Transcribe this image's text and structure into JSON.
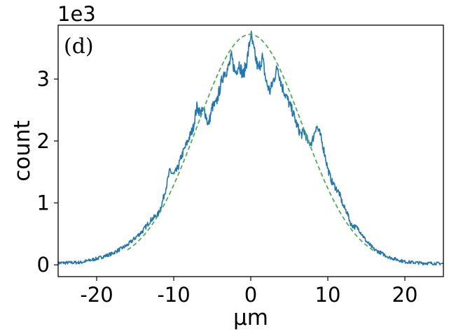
{
  "chart_data": {
    "type": "line",
    "panel_label": "(d)",
    "xlabel": "μm",
    "ylabel": "count",
    "y_offset_label": "1e3",
    "xlim": [
      -25,
      25
    ],
    "ylim": [
      -0.19,
      3.87
    ],
    "xticks": [
      -20,
      -10,
      0,
      10,
      20
    ],
    "xtick_labels": [
      "-20",
      "-10",
      "0",
      "10",
      "20"
    ],
    "yticks": [
      0,
      1,
      2,
      3
    ],
    "ytick_labels": [
      "0",
      "1",
      "2",
      "3"
    ],
    "grid": false,
    "series": [
      {
        "style": "solid",
        "color": "#1f77b4",
        "x": [
          -25,
          -22,
          -20,
          -18,
          -16,
          -14,
          -13,
          -12,
          -11.5,
          -11,
          -10.5,
          -10,
          -9.5,
          -9,
          -8.5,
          -8,
          -7.5,
          -7,
          -6.5,
          -6,
          -5.5,
          -5,
          -4.5,
          -4,
          -3.5,
          -3,
          -2.5,
          -2,
          -1.5,
          -1,
          -0.5,
          -0.3,
          0,
          0.3,
          0.6,
          1,
          1.5,
          2,
          2.5,
          3,
          3.5,
          4,
          4.5,
          5,
          5.5,
          6,
          6.5,
          7,
          7.5,
          8,
          8.5,
          9,
          9.5,
          10,
          10.5,
          11,
          11.5,
          12,
          12.5,
          13,
          14,
          15,
          16,
          18,
          20,
          22,
          25
        ],
        "y": [
          0.03,
          0.04,
          0.1,
          0.18,
          0.32,
          0.55,
          0.72,
          0.82,
          1.0,
          1.25,
          1.52,
          1.45,
          1.55,
          1.75,
          1.9,
          2.05,
          2.2,
          2.55,
          2.45,
          2.5,
          2.25,
          2.55,
          2.6,
          2.85,
          3.1,
          3.15,
          3.35,
          3.1,
          3.25,
          3.05,
          3.3,
          3.45,
          3.72,
          3.52,
          3.35,
          3.15,
          3.35,
          2.95,
          2.8,
          3.0,
          3.2,
          2.9,
          2.75,
          2.6,
          2.45,
          2.25,
          2.1,
          2.15,
          1.95,
          2.0,
          2.25,
          2.1,
          1.85,
          1.55,
          1.35,
          1.25,
          1.15,
          0.95,
          0.85,
          0.65,
          0.58,
          0.38,
          0.25,
          0.12,
          0.05,
          0.03,
          0.02
        ]
      },
      {
        "style": "dashed",
        "color": "#4caf50",
        "gaussian": {
          "amplitude": 3.72,
          "mean": -0.1,
          "sigma": 6.8,
          "x_range": [
            -16,
            16
          ]
        }
      }
    ]
  }
}
